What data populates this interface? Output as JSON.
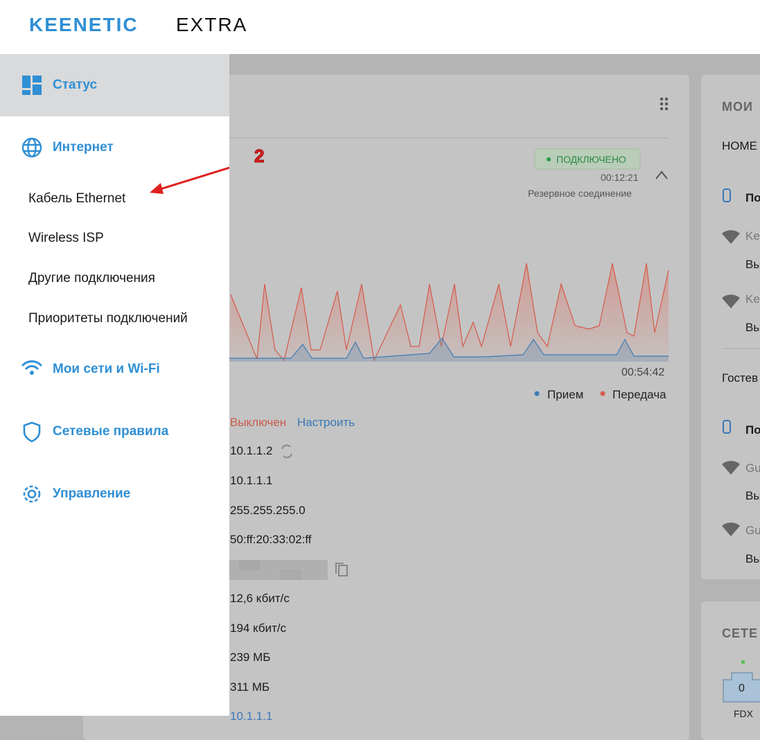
{
  "header": {
    "brand": "KEENETIC",
    "model": "EXTRA"
  },
  "sidebar": {
    "status": "Статус",
    "internet": "Интернет",
    "submenu": [
      "Кабель Ethernet",
      "Wireless ISP",
      "Другие подключения",
      "Приоритеты подключений"
    ],
    "networks": "Мои сети и Wi-Fi",
    "rules": "Сетевые правила",
    "management": "Управление"
  },
  "annotation": {
    "step": "2"
  },
  "internet_card": {
    "status": "ПОДКЛЮЧЕНО",
    "uptime": "00:12:21",
    "connection_type": "Резервное соединение",
    "chart_time": "00:54:42",
    "legend": [
      "Прием",
      "Передача"
    ],
    "firewall_state": "Выключен",
    "configure_link": "Настроить",
    "details": [
      "10.1.1.2",
      "10.1.1.1",
      "255.255.255.0",
      "50:ff:20:33:02:ff",
      "12,6 кбит/с",
      "194 кбит/с",
      "239 МБ",
      "311 МБ",
      "10.1.1.1"
    ]
  },
  "right_card": {
    "title": "МОИ",
    "network": "HOME",
    "rows": [
      "По",
      "Ke",
      "Вы",
      "Ke",
      "Вы"
    ],
    "guest_network": "Гостев",
    "guest_rows": [
      "По",
      "Gu",
      "Вы",
      "Gu",
      "Вы"
    ]
  },
  "networks_card": {
    "title": "СЕТЕ",
    "port_number": "0",
    "port_mode": "FDX"
  }
}
